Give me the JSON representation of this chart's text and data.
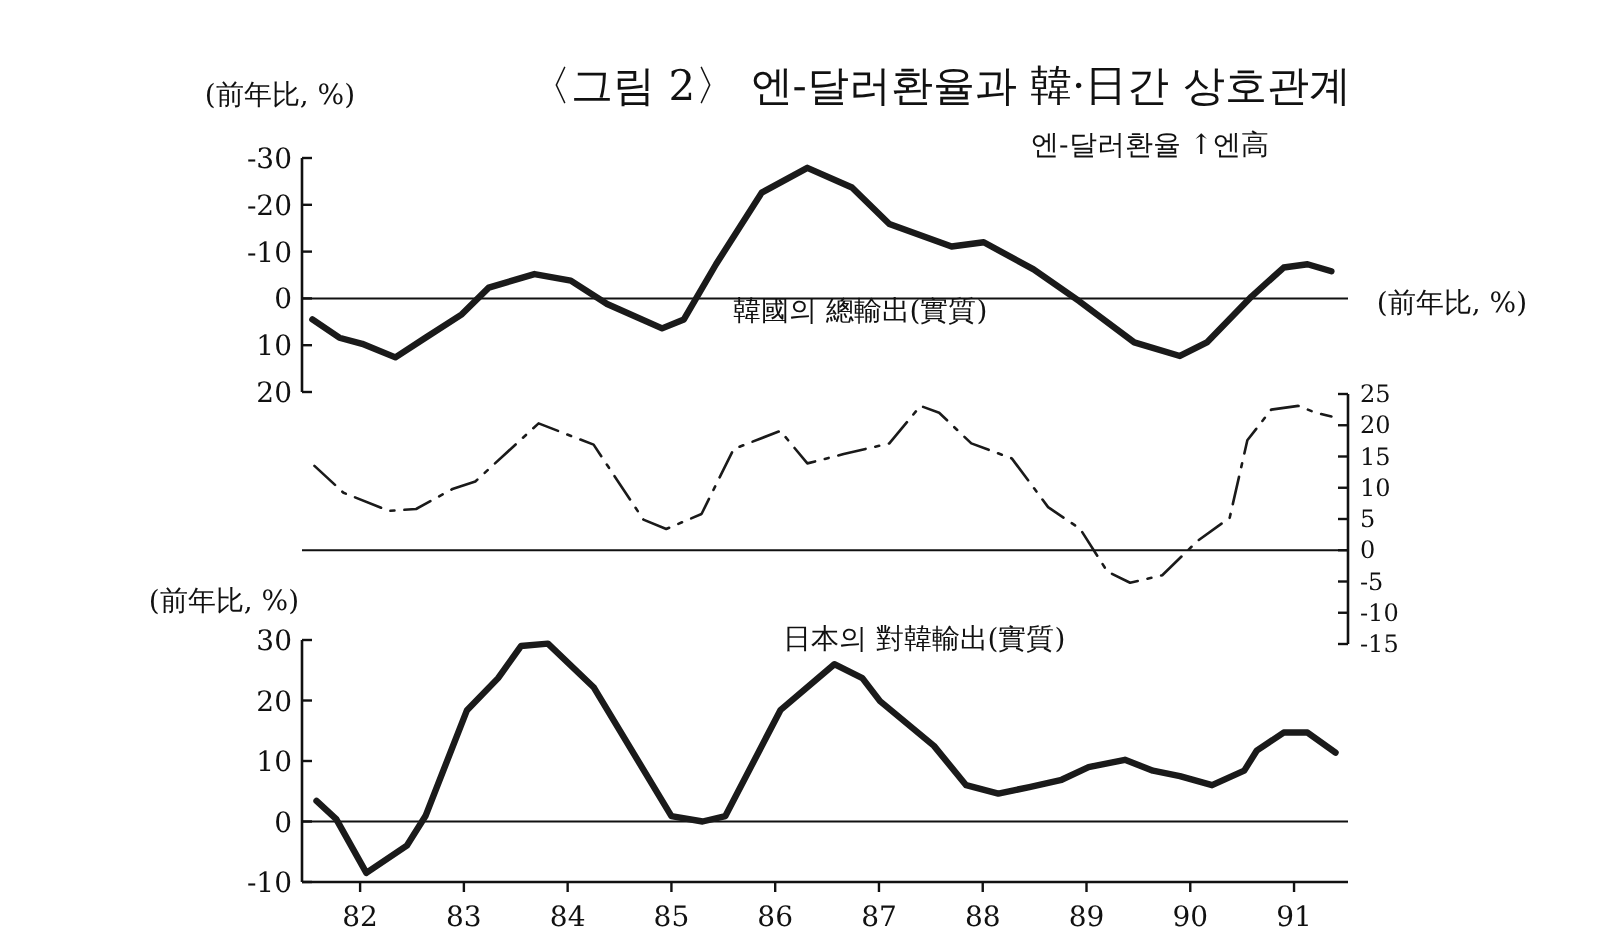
{
  "chart_data": [
    {
      "type": "line",
      "title": "〈그림 2〉 엔-달러환율과 韓·日간 상호관계",
      "ylabel": "(前年比, %)",
      "xlim": [
        81.44,
        91.52
      ],
      "ylim": [
        20,
        -30
      ],
      "yticks": [
        -30,
        -20,
        -10,
        0,
        10,
        20
      ],
      "tick_labels": "y",
      "line_style": "solid",
      "ref_lines": [
        {
          "axis": "y",
          "value": 0
        }
      ],
      "x": [
        81.54,
        81.8,
        82.02,
        82.34,
        82.63,
        82.98,
        83.24,
        83.68,
        84.03,
        84.38,
        84.91,
        85.12,
        85.43,
        85.87,
        86.31,
        86.74,
        87.1,
        87.7,
        88.01,
        88.49,
        88.93,
        89.46,
        89.9,
        90.16,
        90.59,
        90.9,
        91.13,
        91.36
      ],
      "series": [
        {
          "name": "엔-달러환율 ↑엔高",
          "color": "#1a1a1a",
          "values": [
            4.5,
            8.4,
            9.7,
            12.6,
            8.4,
            3.4,
            -2.3,
            -5.2,
            -3.8,
            1.2,
            6.4,
            4.5,
            -7.3,
            -22.6,
            -27.9,
            -23.7,
            -15.9,
            -11.1,
            -12,
            -6.2,
            0.6,
            9.4,
            12.3,
            9.4,
            -0.4,
            -6.6,
            -7.3,
            -5.8
          ]
        }
      ]
    },
    {
      "type": "line",
      "y2label": "(前年比, %)",
      "xlim": [
        81.44,
        91.52
      ],
      "y2lim": [
        -15,
        25
      ],
      "y2ticks": [
        25,
        20,
        15,
        10,
        5,
        0,
        -5,
        -10,
        -15
      ],
      "tick_labels": "y2",
      "line_style": "dashed",
      "ref_lines": [
        {
          "axis": "y2",
          "value": 0
        }
      ],
      "x": [
        81.56,
        81.84,
        82.28,
        82.54,
        82.89,
        83.11,
        83.72,
        84.25,
        84.73,
        84.95,
        85.29,
        85.6,
        86.05,
        86.31,
        86.66,
        87.1,
        87.4,
        87.58,
        87.89,
        88.28,
        88.63,
        88.94,
        89.2,
        89.42,
        89.73,
        90.07,
        90.38,
        90.55,
        90.78,
        91.04,
        91.21,
        91.36
      ],
      "series": [
        {
          "name": "韓國의 總輸出(實質)",
          "color": "#1a1a1a",
          "axis": "y2",
          "values": [
            13.5,
            9.2,
            6.3,
            6.6,
            9.8,
            11,
            20.3,
            16.9,
            4.9,
            3.4,
            5.8,
            16.2,
            19.1,
            13.9,
            15.4,
            17.1,
            23.1,
            22,
            17.1,
            14.7,
            6.9,
            3.4,
            -3.4,
            -5.2,
            -4,
            1.5,
            5.2,
            17.6,
            22.5,
            23.1,
            22,
            21.4
          ]
        }
      ]
    },
    {
      "type": "line",
      "ylabel": "(前年比, %)",
      "xlim": [
        81.44,
        91.52
      ],
      "ylim": [
        -10,
        30
      ],
      "yticks": [
        -10,
        0,
        10,
        20,
        30
      ],
      "xticks": [
        82,
        83,
        84,
        85,
        86,
        87,
        88,
        89,
        90,
        91
      ],
      "line_style": "solid",
      "ref_lines": [
        {
          "axis": "y",
          "value": 0
        }
      ],
      "x": [
        81.58,
        81.77,
        82.06,
        82.45,
        82.63,
        83.03,
        83.33,
        83.55,
        83.81,
        84.25,
        85.0,
        85.3,
        85.52,
        86.05,
        86.57,
        86.84,
        87.01,
        87.53,
        87.84,
        88.15,
        88.45,
        88.76,
        89.02,
        89.37,
        89.64,
        89.9,
        90.21,
        90.52,
        90.64,
        90.9,
        91.13,
        91.4
      ],
      "series": [
        {
          "name": "日本의 對韓輸出(實質)",
          "color": "#1a1a1a",
          "values": [
            3.4,
            0.4,
            -8.5,
            -4,
            0.9,
            18.4,
            23.7,
            29,
            29.4,
            22.2,
            0.9,
            0,
            0.9,
            18.4,
            26,
            23.7,
            19.9,
            12.5,
            6,
            4.6,
            5.7,
            6.9,
            9,
            10.2,
            8.4,
            7.5,
            6,
            8.4,
            11.7,
            14.7,
            14.7,
            11.4
          ]
        }
      ]
    }
  ]
}
